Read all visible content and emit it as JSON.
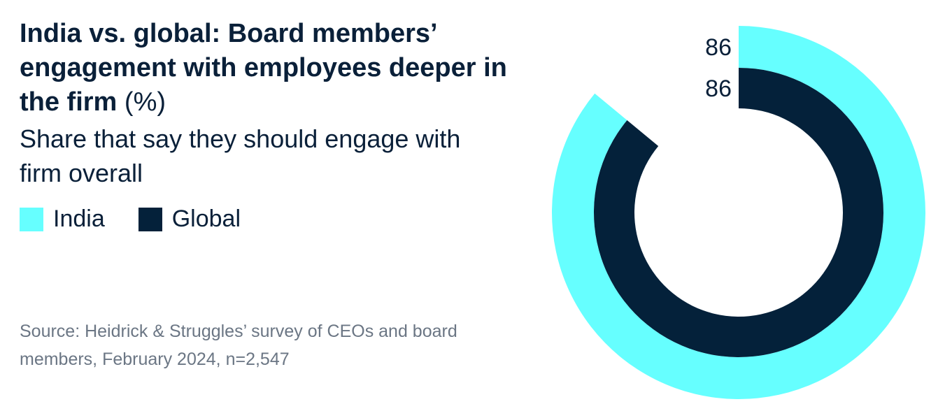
{
  "title_main": "India vs. global: Board members’ engagement with employees deeper in the firm",
  "title_unit": "(%)",
  "subtitle": "Share that say they should engage with firm overall",
  "legend": [
    {
      "label": "India",
      "color": "#66ffff"
    },
    {
      "label": "Global",
      "color": "#04213a"
    }
  ],
  "source": "Source: Heidrick & Struggles’ survey of CEOs and board members, February 2024, n=2,547",
  "chart_data": {
    "type": "radial-bar",
    "unit": "%",
    "max": 100,
    "series": [
      {
        "name": "India",
        "value": 86,
        "label": "86",
        "color": "#66ffff"
      },
      {
        "name": "Global",
        "value": 86,
        "label": "86",
        "color": "#04213a"
      }
    ]
  }
}
